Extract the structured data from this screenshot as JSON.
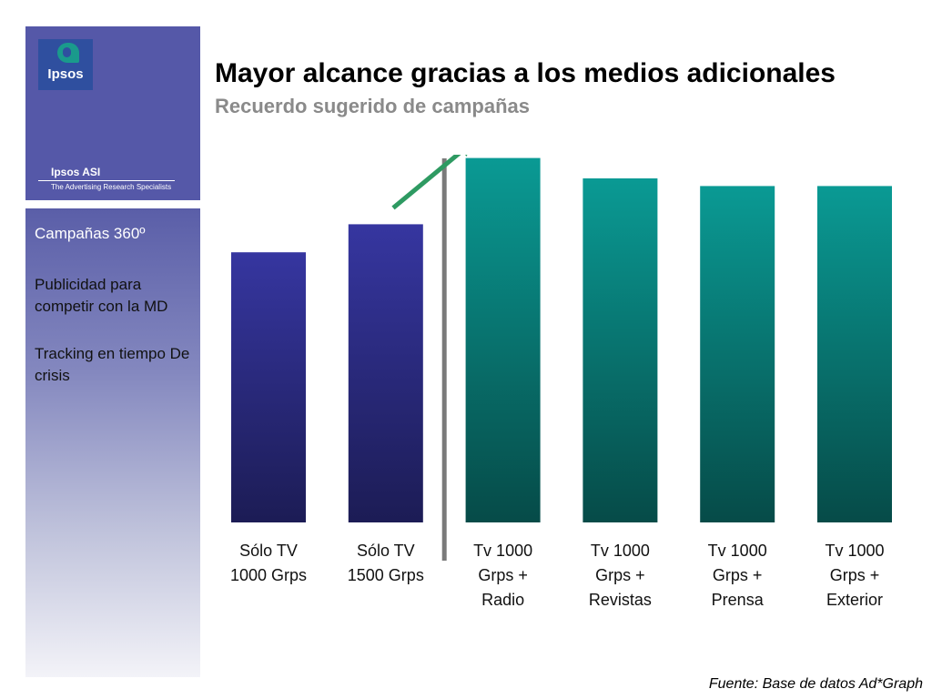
{
  "brand": {
    "logo_text": "Ipsos",
    "unit_name": "Ipsos ASI",
    "tagline": "The Advertising Research Specialists",
    "colors": {
      "panel": "#5558a8",
      "logo_bg": "#2f4f9f",
      "logo_mark": "#1a9a8c"
    }
  },
  "sidebar": {
    "items": [
      {
        "label": "Campañas 360º"
      },
      {
        "label": "Publicidad para competir con la MD"
      },
      {
        "label": "Tracking en tiempo De crisis"
      }
    ]
  },
  "header": {
    "title": "Mayor alcance gracias a los medios adicionales",
    "subtitle": "Recuerdo sugerido de campañas"
  },
  "chart_data": {
    "type": "bar",
    "title": "Mayor alcance gracias a los medios adicionales",
    "subtitle": "Recuerdo sugerido de campañas",
    "categories": [
      [
        "Sólo TV",
        "1000 Grps"
      ],
      [
        "Sólo TV",
        "1500 Grps"
      ],
      [
        "Tv 1000",
        "Grps +",
        "Radio"
      ],
      [
        "Tv 1000",
        "Grps +",
        "Revistas"
      ],
      [
        "Tv 1000",
        "Grps +",
        "Prensa"
      ],
      [
        "Tv 1000",
        "Grps +",
        "Exterior"
      ]
    ],
    "values": [
      53,
      58.5,
      71.5,
      67.5,
      66,
      66
    ],
    "ylim": [
      0,
      100
    ],
    "y_axis_shown": false,
    "grid": false,
    "legend": "none",
    "bar_groups": [
      {
        "indices": [
          0,
          1
        ],
        "color_top": "#3636a0",
        "color_bottom": "#1c1c55"
      },
      {
        "indices": [
          2,
          3,
          4,
          5
        ],
        "color_top": "#0a9a94",
        "color_bottom": "#064b48"
      }
    ],
    "divider_after_index": 1,
    "divider_color": "#7a7a7a",
    "arrow": {
      "from_index": 1,
      "to_index": 2,
      "color": "#2e9a62"
    }
  },
  "footer": {
    "source": "Fuente: Base de datos Ad*Graph"
  }
}
